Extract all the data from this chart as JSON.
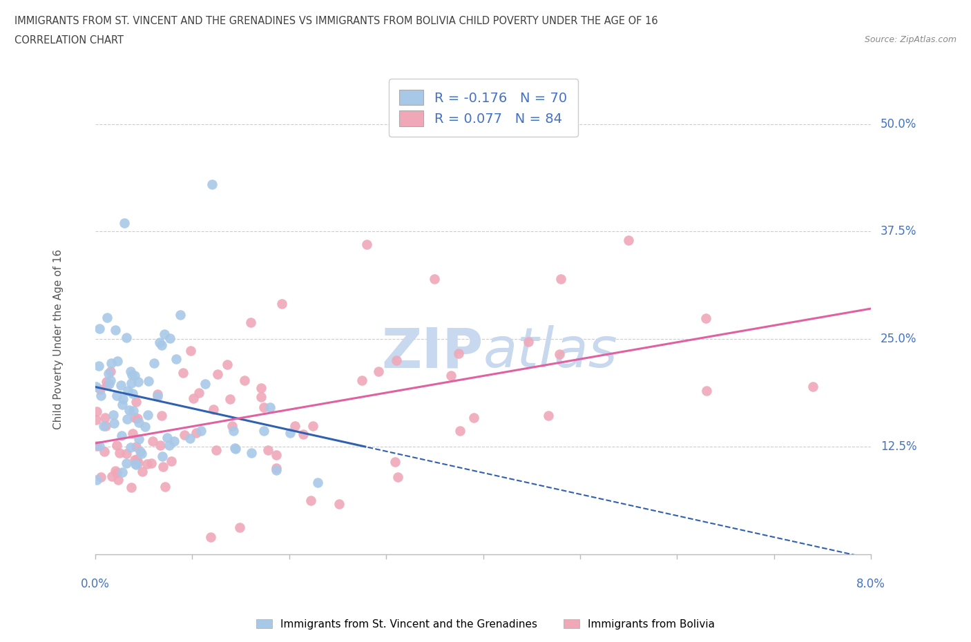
{
  "title_line1": "IMMIGRANTS FROM ST. VINCENT AND THE GRENADINES VS IMMIGRANTS FROM BOLIVIA CHILD POVERTY UNDER THE AGE OF 16",
  "title_line2": "CORRELATION CHART",
  "source_text": "Source: ZipAtlas.com",
  "legend_1_label": "R = -0.176   N = 70",
  "legend_2_label": "R = 0.077   N = 84",
  "legend_label_blue": "Immigrants from St. Vincent and the Grenadines",
  "legend_label_pink": "Immigrants from Bolivia",
  "R_blue": -0.176,
  "N_blue": 70,
  "R_pink": 0.077,
  "N_pink": 84,
  "color_blue": "#a8c8e8",
  "color_pink": "#f0a8b8",
  "color_line_blue": "#3060b0",
  "color_line_pink": "#e060a0",
  "color_axis": "#4472c4",
  "watermark_color": "#c8d8ee",
  "background_color": "#ffffff",
  "xmin": 0.0,
  "xmax": 0.08,
  "ymin": 0.0,
  "ymax": 0.5,
  "grid_color": "#cccccc",
  "title_color": "#404040",
  "tick_color": "#4472c4",
  "ylabel_label": "Child Poverty Under the Age of 16"
}
